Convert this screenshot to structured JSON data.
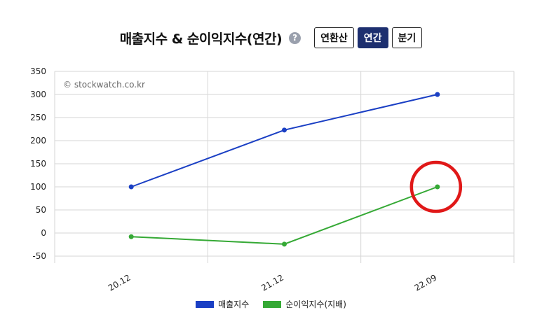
{
  "header": {
    "title": "매출지수 & 순이익지수(연간)",
    "help_icon": "question-circle-icon",
    "buttons": [
      {
        "label": "연환산",
        "active": false
      },
      {
        "label": "연간",
        "active": true
      },
      {
        "label": "분기",
        "active": false
      }
    ]
  },
  "watermark": "© stockwatch.co.kr",
  "colors": {
    "series1": "#1a3fc4",
    "series2": "#35a935",
    "highlight": "#e01818",
    "grid": "#d6d6d6",
    "active_button": "#1d2f6f"
  },
  "chart_data": {
    "type": "line",
    "categories": [
      "20.12",
      "21.12",
      "22.09"
    ],
    "series": [
      {
        "name": "매출지수",
        "values": [
          100,
          223,
          300
        ]
      },
      {
        "name": "순이익지수(지배)",
        "values": [
          -8,
          -24,
          100
        ]
      }
    ],
    "yticks": [
      350,
      300,
      250,
      200,
      150,
      100,
      50,
      0,
      -50
    ],
    "ylim": [
      -50,
      350
    ],
    "grid": true,
    "legend_position": "bottom",
    "highlight": {
      "series": "순이익지수(지배)",
      "category": "22.09"
    }
  }
}
